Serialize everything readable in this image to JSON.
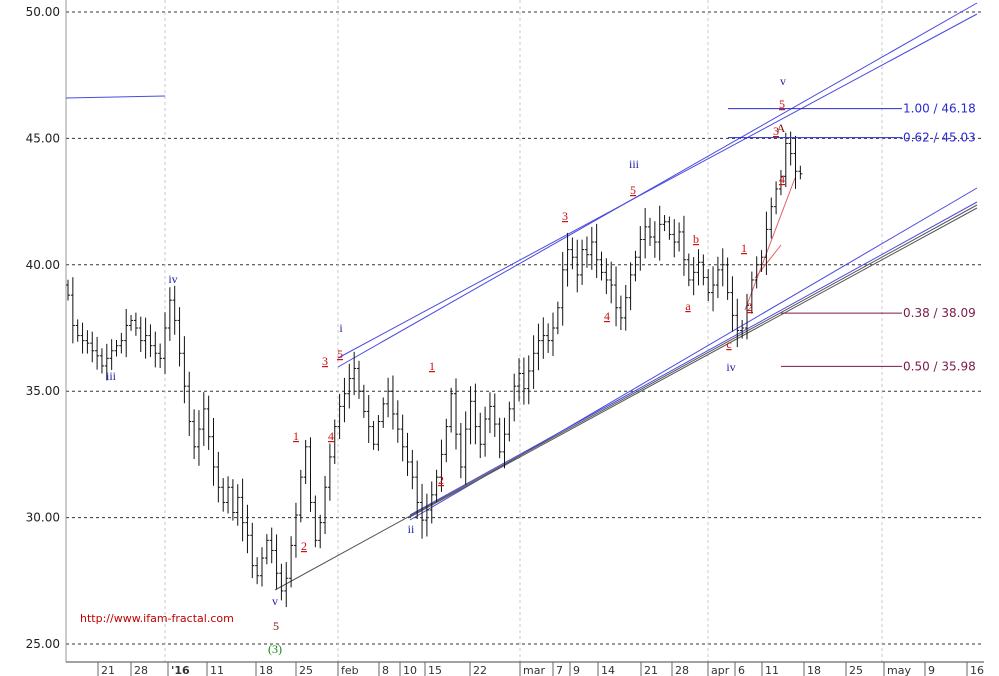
{
  "chart_data": {
    "type": "ohlc",
    "title": "",
    "xlabel": "",
    "ylabel": "",
    "ylim": [
      24.5,
      51.0
    ],
    "y_ticks": [
      "50.00",
      "45.00",
      "40.00",
      "35.00",
      "30.00",
      "25.00"
    ],
    "x_ticks": [
      "21",
      "28",
      "'16",
      "11",
      "18",
      "25",
      "feb",
      "8",
      "10",
      "15",
      "22",
      "mar",
      "7",
      "9",
      "14",
      "21",
      "28",
      "apr",
      "6",
      "11",
      "18",
      "25",
      "may",
      "9",
      "16"
    ],
    "grid": true,
    "series": [
      {
        "name": "price",
        "close": [
          38.8,
          37.6,
          37.2,
          37.0,
          36.9,
          36.6,
          36.4,
          36.0,
          36.3,
          36.6,
          36.8,
          37.0,
          37.6,
          37.8,
          37.5,
          37.0,
          37.2,
          36.8,
          36.5,
          36.3,
          37.5,
          38.6,
          37.8,
          36.5,
          35.2,
          33.8,
          32.8,
          33.5,
          34.3,
          33.2,
          32.0,
          31.2,
          30.6,
          31.2,
          30.2,
          30.8,
          29.8,
          29.3,
          28.1,
          27.7,
          28.4,
          29.1,
          28.7,
          27.8,
          27.1,
          27.6,
          28.9,
          30.1,
          31.6,
          32.8,
          30.6,
          29.1,
          29.8,
          31.2,
          32.4,
          33.6,
          34.4,
          34.9,
          35.5,
          35.9,
          35.0,
          34.2,
          33.6,
          32.9,
          33.8,
          34.5,
          35.0,
          34.1,
          33.5,
          32.8,
          32.2,
          31.6,
          30.6,
          29.9,
          30.3,
          30.9,
          31.6,
          32.5,
          33.6,
          34.9,
          33.3,
          32.0,
          33.5,
          34.6,
          33.6,
          32.9,
          33.9,
          34.4,
          33.7,
          32.6,
          33.3,
          34.3,
          35.2,
          35.7,
          35.1,
          35.8,
          36.5,
          37.0,
          37.2,
          37.0,
          37.5,
          38.3,
          39.8,
          40.6,
          40.3,
          39.6,
          40.6,
          40.4,
          40.9,
          40.2,
          39.7,
          39.4,
          39.2,
          38.3,
          37.9,
          38.7,
          39.6,
          40.3,
          41.0,
          41.5,
          41.1,
          40.9,
          41.6,
          41.7,
          41.2,
          40.9,
          41.3,
          40.2,
          39.4,
          39.7,
          40.1,
          39.5,
          38.9,
          39.2,
          39.8,
          40.0,
          38.9,
          38.0,
          37.4,
          37.5,
          38.4,
          39.4,
          40.0,
          40.3,
          41.4,
          42.3,
          43.0,
          43.5,
          44.8,
          44.4,
          43.7,
          43.6
        ]
      }
    ],
    "wave_labels": [
      {
        "text": "iii",
        "color": "#1a1aa8"
      },
      {
        "text": "iv",
        "color": "#1a1aa8"
      },
      {
        "text": "v",
        "color": "#1a1aa8"
      },
      {
        "text": "5",
        "color": "#7a1010"
      },
      {
        "text": "(3)",
        "color": "#118811"
      },
      {
        "text": "1",
        "color": "#cc1111"
      },
      {
        "text": "2",
        "color": "#cc1111"
      },
      {
        "text": "3",
        "color": "#cc1111"
      },
      {
        "text": "4",
        "color": "#cc1111"
      },
      {
        "text": "5",
        "color": "#cc1111"
      },
      {
        "text": "i",
        "color": "#1a1aa8"
      },
      {
        "text": "ii",
        "color": "#1a1aa8"
      },
      {
        "text": "1",
        "color": "#cc1111"
      },
      {
        "text": "2",
        "color": "#cc1111"
      },
      {
        "text": "3",
        "color": "#cc1111"
      },
      {
        "text": "4",
        "color": "#cc1111"
      },
      {
        "text": "5",
        "color": "#cc1111"
      },
      {
        "text": "iii",
        "color": "#1a1aa8"
      },
      {
        "text": "a",
        "color": "#cc1111"
      },
      {
        "text": "b",
        "color": "#cc1111"
      },
      {
        "text": "c",
        "color": "#cc1111"
      },
      {
        "text": "iv",
        "color": "#1a1aa8"
      },
      {
        "text": "1",
        "color": "#cc1111"
      },
      {
        "text": "2",
        "color": "#cc1111"
      },
      {
        "text": "3",
        "color": "#cc1111"
      },
      {
        "text": "4",
        "color": "#cc1111"
      },
      {
        "text": "5",
        "color": "#cc1111"
      },
      {
        "text": "v",
        "color": "#1a1aa8"
      },
      {
        "text": "A",
        "color": "#7a1010"
      }
    ],
    "fib_levels": [
      {
        "label": "1.00 / 46.18",
        "value": 46.18,
        "color": "#2a2ad0"
      },
      {
        "label": "0.62 / 45.03",
        "value": 45.03,
        "color": "#2a2ad0"
      },
      {
        "label": "0.38 / 38.09",
        "value": 38.09,
        "color": "#7a1a4a"
      },
      {
        "label": "0.50 / 35.98",
        "value": 35.98,
        "color": "#7a1a4a"
      }
    ],
    "annotation": "http://www.ifam-fractal.com",
    "colors": {
      "bars": "#111111",
      "channel": "#4a4ae0",
      "trend": "#555555",
      "subchannel": "#e06060"
    }
  }
}
